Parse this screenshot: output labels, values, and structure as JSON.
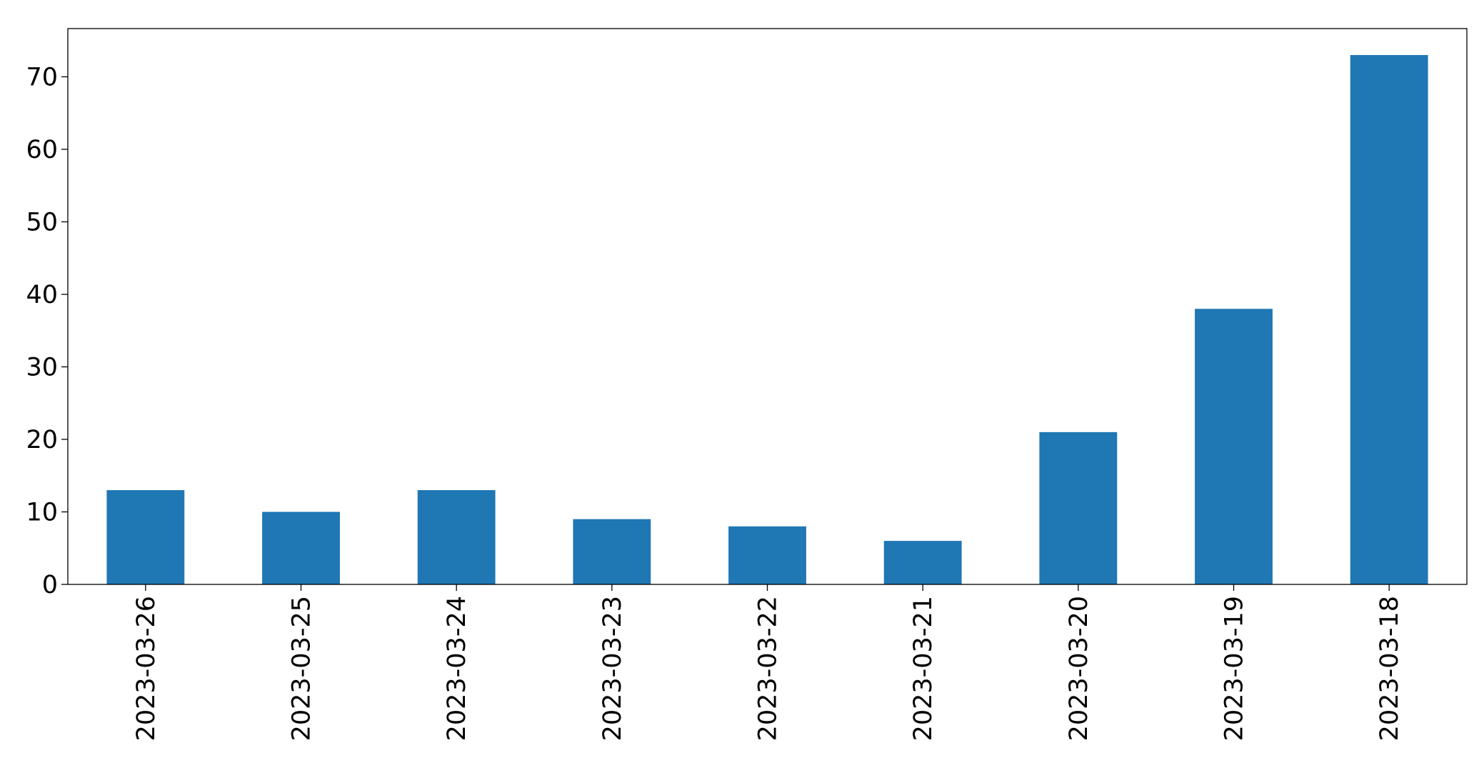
{
  "chart_data": {
    "type": "bar",
    "categories": [
      "2023-03-26",
      "2023-03-25",
      "2023-03-24",
      "2023-03-23",
      "2023-03-22",
      "2023-03-21",
      "2023-03-20",
      "2023-03-19",
      "2023-03-18"
    ],
    "values": [
      13,
      10,
      13,
      9,
      8,
      6,
      21,
      38,
      73
    ],
    "color": "#1f77b4",
    "ylim": [
      0,
      76.65
    ],
    "yticks": [
      0,
      10,
      20,
      30,
      40,
      50,
      60,
      70
    ],
    "grid": false
  }
}
